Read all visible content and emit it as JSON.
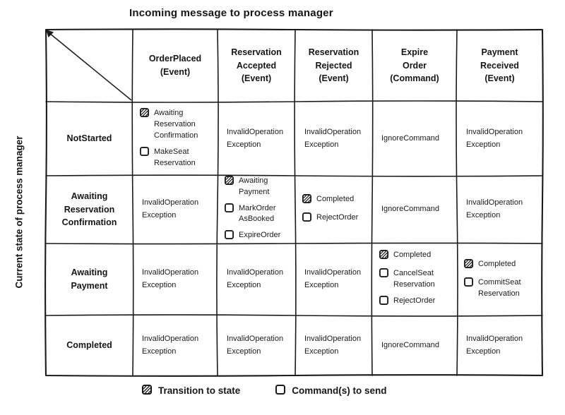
{
  "title": "Incoming message to process manager",
  "y_axis_label": "Current state of process manager",
  "colors": {
    "ink": "#1a1a1a",
    "background": "#ffffff"
  },
  "legend": {
    "transition_label": "Transition to state",
    "command_label": "Command(s) to send"
  },
  "table": {
    "columns": [
      "OrderPlaced\n(Event)",
      "Reservation\nAccepted\n(Event)",
      "Reservation\nRejected\n(Event)",
      "Expire\nOrder\n(Command)",
      "Payment\nReceived\n(Event)"
    ],
    "rows": [
      {
        "state": "NotStarted",
        "cells": [
          {
            "type": "items",
            "items": [
              {
                "icon": "transition",
                "text": "Awaiting\nReservation\nConfirmation"
              },
              {
                "icon": "command",
                "text": "MakeSeat\nReservation"
              }
            ]
          },
          {
            "type": "text",
            "text": "InvalidOperation\nException"
          },
          {
            "type": "text",
            "text": "InvalidOperation\nException"
          },
          {
            "type": "text",
            "text": "IgnoreCommand"
          },
          {
            "type": "text",
            "text": "InvalidOperation\nException"
          }
        ]
      },
      {
        "state": "Awaiting\nReservation\nConfirmation",
        "cells": [
          {
            "type": "text",
            "text": "InvalidOperation\nException"
          },
          {
            "type": "items",
            "items": [
              {
                "icon": "transition",
                "text": "Awaiting\nPayment"
              },
              {
                "icon": "command",
                "text": "MarkOrder\nAsBooked"
              },
              {
                "icon": "command",
                "text": "ExpireOrder"
              }
            ]
          },
          {
            "type": "items",
            "items": [
              {
                "icon": "transition",
                "text": "Completed"
              },
              {
                "icon": "command",
                "text": "RejectOrder"
              }
            ]
          },
          {
            "type": "text",
            "text": "IgnoreCommand"
          },
          {
            "type": "text",
            "text": "InvalidOperation\nException"
          }
        ]
      },
      {
        "state": "Awaiting\nPayment",
        "cells": [
          {
            "type": "text",
            "text": "InvalidOperation\nException"
          },
          {
            "type": "text",
            "text": "InvalidOperation\nException"
          },
          {
            "type": "text",
            "text": "InvalidOperation\nException"
          },
          {
            "type": "items",
            "items": [
              {
                "icon": "transition",
                "text": "Completed"
              },
              {
                "icon": "command",
                "text": "CancelSeat\nReservation"
              },
              {
                "icon": "command",
                "text": "RejectOrder"
              }
            ]
          },
          {
            "type": "items",
            "items": [
              {
                "icon": "transition",
                "text": "Completed"
              },
              {
                "icon": "command",
                "text": "CommitSeat\nReservation"
              }
            ]
          }
        ]
      },
      {
        "state": "Completed",
        "cells": [
          {
            "type": "text",
            "text": "InvalidOperation\nException"
          },
          {
            "type": "text",
            "text": "InvalidOperation\nException"
          },
          {
            "type": "text",
            "text": "InvalidOperation\nException"
          },
          {
            "type": "text",
            "text": "IgnoreCommand"
          },
          {
            "type": "text",
            "text": "InvalidOperation\nException"
          }
        ]
      }
    ]
  }
}
